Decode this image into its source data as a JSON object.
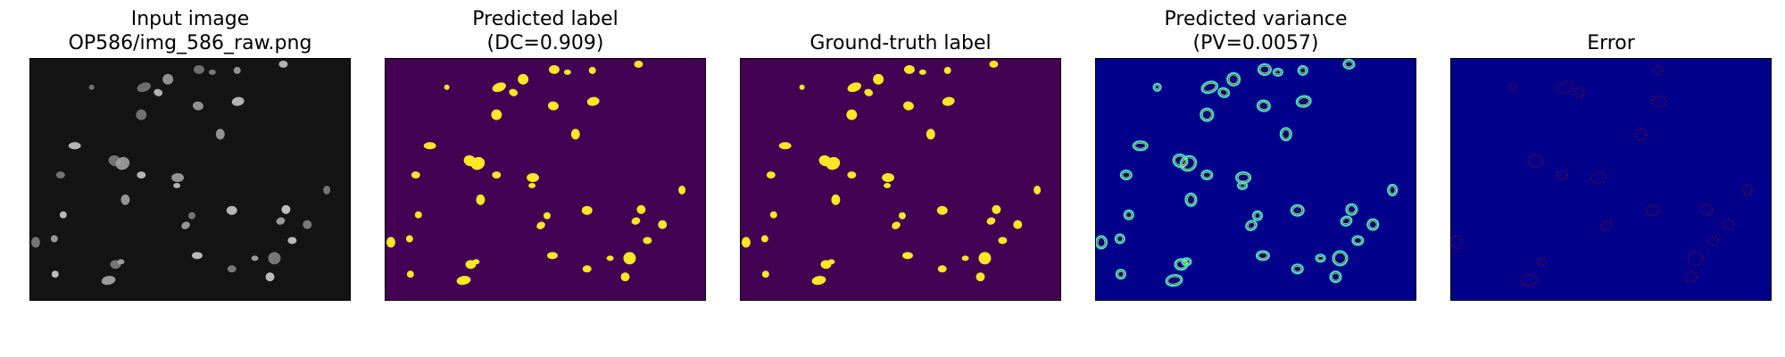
{
  "figure": {
    "panels": [
      {
        "title": "Input image\nOP586/img_586_raw.png",
        "kind": "raw-fluorescence-image"
      },
      {
        "title": "Predicted label\n(DC=0.909)",
        "kind": "binary-segmentation"
      },
      {
        "title": "Ground-truth label",
        "kind": "binary-segmentation"
      },
      {
        "title": "Predicted variance\n(PV=0.0057)",
        "kind": "variance-heatmap"
      },
      {
        "title": "Error",
        "kind": "error-heatmap"
      }
    ],
    "colors": {
      "raw_background": "#141414",
      "raw_nucleus": "#bdbdbd",
      "label_background": "#440154",
      "label_foreground": "#fde725",
      "heatmap_background": "#00008b",
      "heatmap_ring_outer": "#40e0d0",
      "heatmap_ring_inner": "#ffff00",
      "error_ring": "#b40000"
    }
  }
}
